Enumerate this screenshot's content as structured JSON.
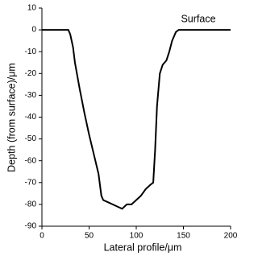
{
  "chart_data": {
    "type": "line",
    "xlabel": "Lateral profile/μm",
    "ylabel": "Depth (from surface)/μm",
    "annotation": "Surface",
    "x": [
      0,
      10,
      20,
      28,
      30,
      33,
      35,
      40,
      45,
      50,
      55,
      60,
      63,
      65,
      70,
      75,
      80,
      85,
      90,
      95,
      100,
      105,
      110,
      115,
      118,
      120,
      122,
      125,
      128,
      132,
      135,
      138,
      142,
      145,
      150,
      160,
      170,
      180,
      190,
      200
    ],
    "series": [
      {
        "color": "#000000",
        "values": [
          0,
          0,
          0,
          0,
          -2,
          -8,
          -15,
          -27,
          -38,
          -48,
          -57,
          -66,
          -76,
          -78,
          -79,
          -80,
          -81,
          -82,
          -80,
          -80,
          -78,
          -76,
          -73,
          -71,
          -70,
          -55,
          -35,
          -20,
          -16,
          -14,
          -10,
          -5,
          -1,
          0,
          0,
          0,
          0,
          0,
          0,
          0
        ]
      }
    ],
    "xlim": [
      0,
      200
    ],
    "xticks": [
      0,
      50,
      100,
      150,
      200
    ],
    "ylim": [
      -90,
      10
    ],
    "yticks": [
      10,
      0,
      -10,
      -20,
      -30,
      -40,
      -50,
      -60,
      -70,
      -80,
      -90
    ]
  }
}
